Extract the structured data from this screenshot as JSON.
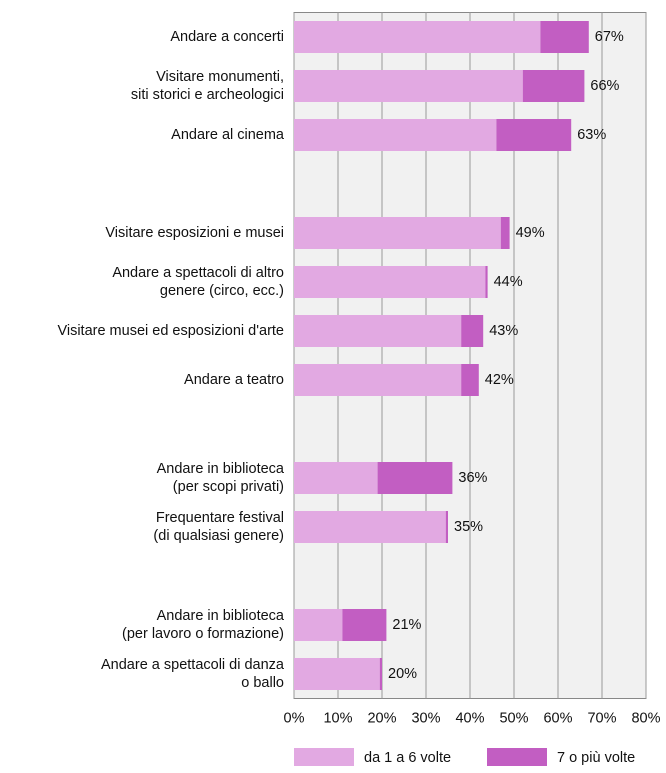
{
  "chart_data": {
    "type": "stacked-bar-horizontal",
    "categories": [
      "Andare a concerti",
      "Visitare monumenti,\nsiti storici e archeologici",
      "Andare al cinema",
      null,
      "Visitare esposizioni e musei",
      "Andare a spettacoli di altro\ngenere (circo, ecc.)",
      "Visitare musei ed esposizioni d'arte",
      "Andare a teatro",
      null,
      "Andare in biblioteca\n(per scopi privati)",
      "Frequentare festival\n(di qualsiasi genere)",
      null,
      "Andare in biblioteca\n(per lavoro o formazione)",
      "Andare a spettacoli di danza\no ballo"
    ],
    "series": [
      {
        "name": "da 1 a 6 volte",
        "color": "#e2a9e2",
        "values": [
          56,
          52,
          46,
          null,
          47,
          43.5,
          38,
          38,
          null,
          19,
          34.5,
          null,
          11,
          19.5
        ]
      },
      {
        "name": "7 o più volte",
        "color": "#c25ec2",
        "values": [
          11,
          14,
          17,
          null,
          2,
          0.5,
          5,
          4,
          null,
          17,
          0.5,
          null,
          10,
          0.5
        ]
      }
    ],
    "totals": [
      67,
      66,
      63,
      null,
      49,
      44,
      43,
      42,
      null,
      36,
      35,
      null,
      21,
      20
    ],
    "total_labels": [
      "67%",
      "66%",
      "63%",
      null,
      "49%",
      "44%",
      "43%",
      "42%",
      null,
      "36%",
      "35%",
      null,
      "21%",
      "20%"
    ],
    "xlim": [
      0,
      80
    ],
    "xticks": [
      {
        "value": 0,
        "label": "0%"
      },
      {
        "value": 10,
        "label": "10%"
      },
      {
        "value": 20,
        "label": "20%"
      },
      {
        "value": 30,
        "label": "30%"
      },
      {
        "value": 40,
        "label": "40%"
      },
      {
        "value": 50,
        "label": "50%"
      },
      {
        "value": 60,
        "label": "60%"
      },
      {
        "value": 70,
        "label": "70%"
      },
      {
        "value": 80,
        "label": "80%"
      }
    ],
    "grid": true,
    "legend": "bottom"
  }
}
